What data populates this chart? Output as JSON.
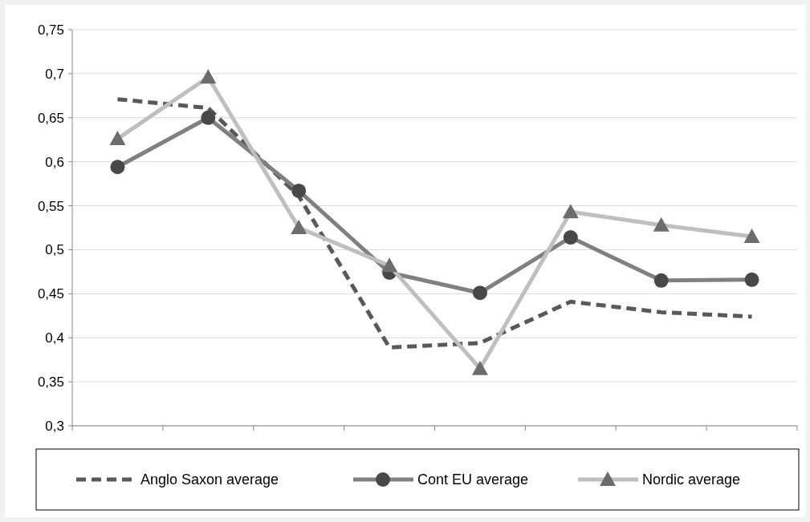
{
  "chart_data": {
    "type": "line",
    "categories": [
      null,
      null,
      null,
      null,
      null,
      null,
      null,
      null
    ],
    "series": [
      {
        "name": "Anglo Saxon average",
        "color": "#595959",
        "line_style": "dashed",
        "marker": "none",
        "values": [
          0.671,
          0.661,
          0.561,
          0.389,
          0.394,
          0.441,
          0.429,
          0.424
        ]
      },
      {
        "name": "Cont EU average",
        "color": "#808080",
        "line_style": "solid",
        "marker": "circle",
        "values": [
          0.594,
          0.65,
          0.567,
          0.474,
          0.451,
          0.514,
          0.465,
          0.466
        ]
      },
      {
        "name": "Nordic average",
        "color": "#bfbfbf",
        "line_style": "solid",
        "marker": "triangle",
        "values": [
          0.626,
          0.696,
          0.525,
          0.482,
          0.365,
          0.543,
          0.528,
          0.515
        ]
      }
    ],
    "ylim": [
      0.3,
      0.75
    ],
    "yticks": [
      {
        "value": 0.3,
        "label": "0,3"
      },
      {
        "value": 0.35,
        "label": "0,35"
      },
      {
        "value": 0.4,
        "label": "0,4"
      },
      {
        "value": 0.45,
        "label": "0,45"
      },
      {
        "value": 0.5,
        "label": "0,5"
      },
      {
        "value": 0.55,
        "label": "0,55"
      },
      {
        "value": 0.6,
        "label": "0,6"
      },
      {
        "value": 0.65,
        "label": "0,65"
      },
      {
        "value": 0.7,
        "label": "0,7"
      },
      {
        "value": 0.75,
        "label": "0,75"
      }
    ],
    "grid": "y",
    "legend": "bottom"
  }
}
